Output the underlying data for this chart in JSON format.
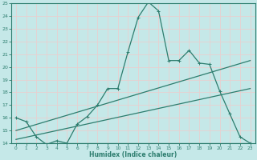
{
  "xlabel": "Humidex (Indice chaleur)",
  "xlim": [
    -0.5,
    23.5
  ],
  "ylim": [
    14,
    25
  ],
  "yticks": [
    14,
    15,
    16,
    17,
    18,
    19,
    20,
    21,
    22,
    23,
    24,
    25
  ],
  "xticks": [
    0,
    1,
    2,
    3,
    4,
    5,
    6,
    7,
    8,
    9,
    10,
    11,
    12,
    13,
    14,
    15,
    16,
    17,
    18,
    19,
    20,
    21,
    22,
    23
  ],
  "bg_color": "#c5e8e8",
  "grid_color": "#e8d0d0",
  "line_color": "#2d7d6e",
  "line1_x": [
    0,
    1,
    2,
    3,
    4,
    5,
    6,
    7,
    8,
    9,
    10,
    11,
    12,
    13,
    14,
    15,
    16,
    17,
    18,
    19,
    20,
    21,
    22,
    23
  ],
  "line1_y": [
    16.0,
    15.7,
    14.5,
    13.9,
    14.2,
    14.0,
    15.5,
    16.1,
    17.0,
    18.3,
    18.3,
    21.2,
    23.9,
    25.1,
    24.4,
    20.5,
    20.5,
    21.3,
    20.3,
    20.2,
    18.1,
    16.3,
    14.5,
    14.0
  ],
  "line2_x": [
    0,
    23
  ],
  "line2_y": [
    15.0,
    20.5
  ],
  "line3_x": [
    0,
    23
  ],
  "line3_y": [
    14.3,
    18.3
  ],
  "line4_x": [
    0,
    4,
    14,
    23
  ],
  "line4_y": [
    14.0,
    14.0,
    14.0,
    14.0
  ]
}
